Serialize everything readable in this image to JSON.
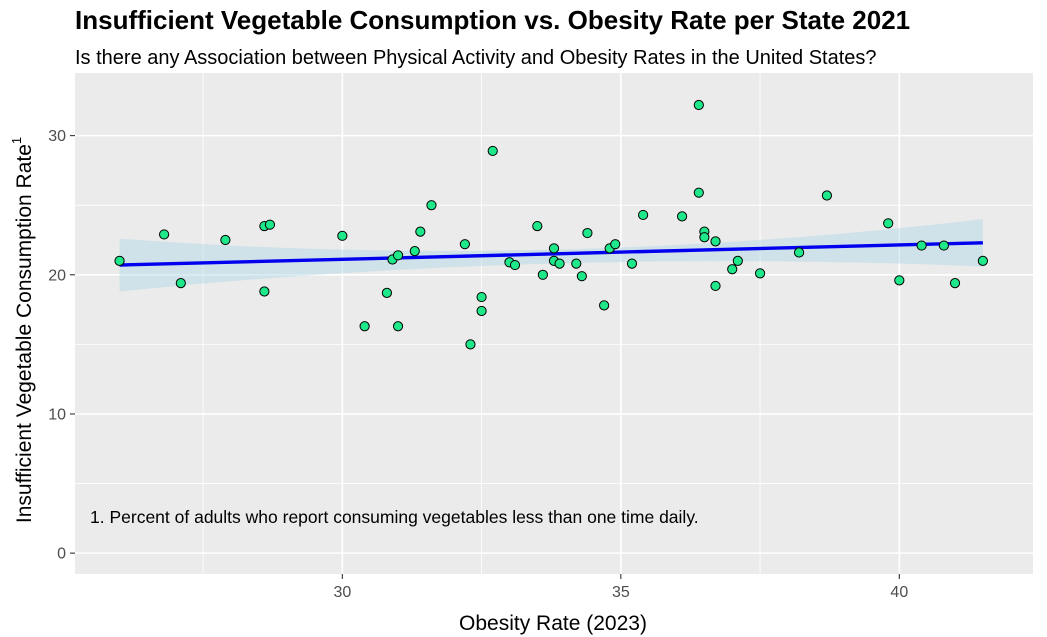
{
  "title": "Insufficient Vegetable Consumption vs. Obesity Rate per State 2021",
  "subtitle": "Is there any Association between Physical Activity and Obesity Rates in the United States?",
  "note": "1. Percent of adults who report consuming vegetables less than one time daily.",
  "colors": {
    "panel": "#ebebeb",
    "grid": "#ffffff",
    "point_fill": "#1ee88a",
    "point_stroke": "#000000",
    "line": "#0000ee",
    "ribbon": "#add8e6"
  },
  "chart_data": {
    "type": "scatter",
    "title": "Insufficient Vegetable Consumption vs. Obesity Rate per State 2021",
    "subtitle": "Is there any Association between Physical Activity and Obesity Rates in the United States?",
    "xlabel": "Obesity Rate (2023)",
    "ylabel": "Insufficient Vegetable Consumption Rate",
    "ylabel_superscript": "1",
    "xlim": [
      25.2,
      42.4
    ],
    "ylim": [
      -1.5,
      34.5
    ],
    "x_ticks": [
      30,
      35,
      40
    ],
    "y_ticks": [
      0,
      10,
      20,
      30
    ],
    "grid": true,
    "legend": "none",
    "points": [
      {
        "x": 26.0,
        "y": 21.0
      },
      {
        "x": 26.8,
        "y": 22.9
      },
      {
        "x": 27.1,
        "y": 19.4
      },
      {
        "x": 27.9,
        "y": 22.5
      },
      {
        "x": 28.6,
        "y": 18.8
      },
      {
        "x": 28.6,
        "y": 23.5
      },
      {
        "x": 28.7,
        "y": 23.6
      },
      {
        "x": 30.0,
        "y": 22.8
      },
      {
        "x": 30.4,
        "y": 16.3
      },
      {
        "x": 30.8,
        "y": 18.7
      },
      {
        "x": 30.9,
        "y": 21.1
      },
      {
        "x": 31.0,
        "y": 21.4
      },
      {
        "x": 31.0,
        "y": 16.3
      },
      {
        "x": 31.3,
        "y": 21.7
      },
      {
        "x": 31.4,
        "y": 23.1
      },
      {
        "x": 31.6,
        "y": 25.0
      },
      {
        "x": 32.2,
        "y": 22.2
      },
      {
        "x": 32.3,
        "y": 15.0
      },
      {
        "x": 32.5,
        "y": 17.4
      },
      {
        "x": 32.5,
        "y": 18.4
      },
      {
        "x": 32.7,
        "y": 28.9
      },
      {
        "x": 33.0,
        "y": 20.9
      },
      {
        "x": 33.1,
        "y": 20.7
      },
      {
        "x": 33.5,
        "y": 23.5
      },
      {
        "x": 33.6,
        "y": 20.0
      },
      {
        "x": 33.8,
        "y": 21.0
      },
      {
        "x": 33.8,
        "y": 21.9
      },
      {
        "x": 33.9,
        "y": 20.8
      },
      {
        "x": 34.2,
        "y": 20.8
      },
      {
        "x": 34.3,
        "y": 19.9
      },
      {
        "x": 34.4,
        "y": 23.0
      },
      {
        "x": 34.7,
        "y": 17.8
      },
      {
        "x": 34.8,
        "y": 21.9
      },
      {
        "x": 34.9,
        "y": 22.2
      },
      {
        "x": 35.2,
        "y": 20.8
      },
      {
        "x": 35.4,
        "y": 24.3
      },
      {
        "x": 36.1,
        "y": 24.2
      },
      {
        "x": 36.4,
        "y": 32.2
      },
      {
        "x": 36.4,
        "y": 25.9
      },
      {
        "x": 36.5,
        "y": 23.1
      },
      {
        "x": 36.5,
        "y": 22.7
      },
      {
        "x": 36.7,
        "y": 22.4
      },
      {
        "x": 36.7,
        "y": 19.2
      },
      {
        "x": 37.0,
        "y": 20.4
      },
      {
        "x": 37.1,
        "y": 21.0
      },
      {
        "x": 37.5,
        "y": 20.1
      },
      {
        "x": 38.2,
        "y": 21.6
      },
      {
        "x": 38.7,
        "y": 25.7
      },
      {
        "x": 39.8,
        "y": 23.7
      },
      {
        "x": 40.0,
        "y": 19.6
      },
      {
        "x": 40.4,
        "y": 22.1
      },
      {
        "x": 40.8,
        "y": 22.1
      },
      {
        "x": 41.0,
        "y": 19.4
      },
      {
        "x": 41.5,
        "y": 21.0
      }
    ],
    "trend_line": {
      "method": "linear",
      "start": {
        "x": 26.0,
        "y": 20.7
      },
      "end": {
        "x": 41.5,
        "y": 22.3
      },
      "ci_lower": {
        "start": 18.8,
        "mid": 20.8,
        "end": 20.6
      },
      "ci_upper": {
        "start": 22.6,
        "mid": 21.8,
        "end": 24.0
      },
      "ci_mid_x": 33.6
    }
  }
}
